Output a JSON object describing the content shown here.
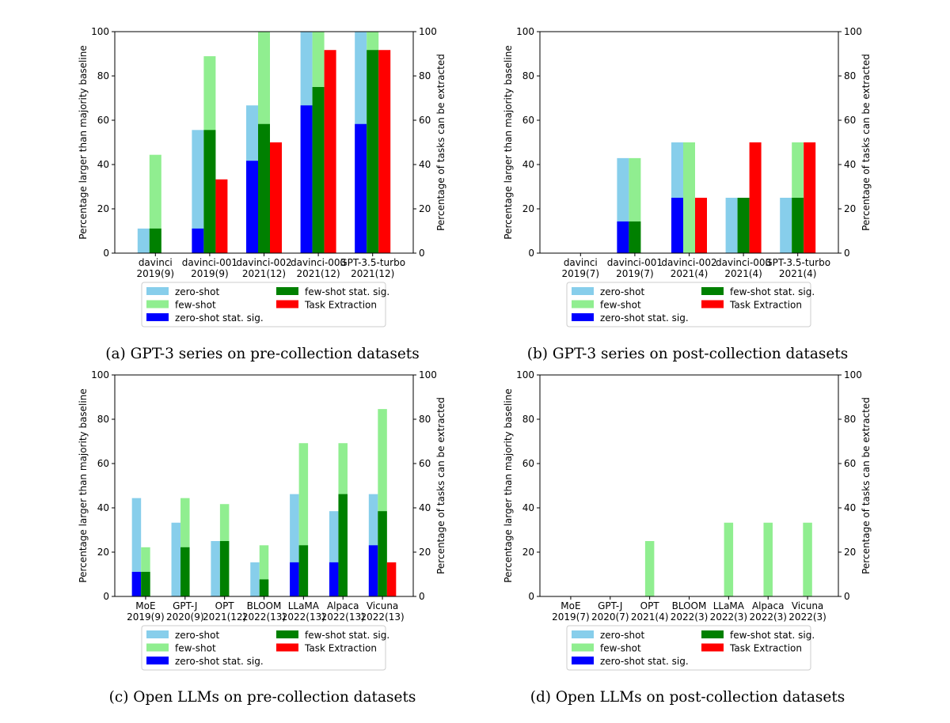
{
  "colors": {
    "zero_shot": "#87ceeb",
    "few_shot": "#90ee90",
    "zero_shot_sig": "#0000ff",
    "few_shot_sig": "#008000",
    "task_extraction": "#ff0000"
  },
  "chart_data": [
    {
      "id": "a",
      "type": "bar",
      "caption": "(a) GPT-3 series on pre-collection datasets",
      "ylabel_left": "Percentage larger than majority baseline",
      "ylabel_right": "Percentage of tasks can be extracted",
      "ylim": [
        0,
        100
      ],
      "yticks": [
        0,
        20,
        40,
        60,
        80,
        100
      ],
      "categories": [
        {
          "name": "davinci",
          "sub": "2019(9)"
        },
        {
          "name": "davinci-001",
          "sub": "2019(9)"
        },
        {
          "name": "davinci-002",
          "sub": "2021(12)"
        },
        {
          "name": "davinci-003",
          "sub": "2021(12)"
        },
        {
          "name": "GPT-3.5-turbo",
          "sub": "2021(12)"
        }
      ],
      "series": {
        "zero_shot": [
          11.1,
          55.6,
          66.7,
          100,
          100
        ],
        "zero_shot_sig": [
          0,
          11.1,
          41.7,
          66.7,
          58.3
        ],
        "few_shot": [
          44.4,
          88.9,
          100,
          100,
          100
        ],
        "few_shot_sig": [
          11.1,
          55.6,
          58.3,
          75,
          91.7
        ],
        "task_extraction": [
          0,
          33.3,
          50,
          91.7,
          91.7
        ]
      },
      "legend": {
        "zero_shot": "zero-shot",
        "few_shot": "few-shot",
        "zero_shot_sig": "zero-shot stat. sig.",
        "few_shot_sig": "few-shot stat. sig.",
        "task_extraction": "Task Extraction"
      }
    },
    {
      "id": "b",
      "type": "bar",
      "caption": "(b) GPT-3 series on post-collection datasets",
      "ylabel_left": "Percentage larger than majority baseline",
      "ylabel_right": "Percentage of tasks can be extracted",
      "ylim": [
        0,
        100
      ],
      "yticks": [
        0,
        20,
        40,
        60,
        80,
        100
      ],
      "categories": [
        {
          "name": "davinci",
          "sub": "2019(7)"
        },
        {
          "name": "davinci-001",
          "sub": "2019(7)"
        },
        {
          "name": "davinci-002",
          "sub": "2021(4)"
        },
        {
          "name": "davinci-003",
          "sub": "2021(4)"
        },
        {
          "name": "GPT-3.5-turbo",
          "sub": "2021(4)"
        }
      ],
      "series": {
        "zero_shot": [
          0,
          42.9,
          50,
          25,
          25
        ],
        "zero_shot_sig": [
          0,
          14.3,
          25,
          0,
          0
        ],
        "few_shot": [
          0,
          42.9,
          50,
          25,
          50
        ],
        "few_shot_sig": [
          0,
          14.3,
          0,
          25,
          25
        ],
        "task_extraction": [
          0,
          0,
          25,
          50,
          50
        ]
      },
      "legend": {
        "zero_shot": "zero-shot",
        "few_shot": "few-shot",
        "zero_shot_sig": "zero-shot stat. sig.",
        "few_shot_sig": "few-shot stat. sig.",
        "task_extraction": "Task Extraction"
      }
    },
    {
      "id": "c",
      "type": "bar",
      "caption": "(c) Open LLMs on pre-collection datasets",
      "ylabel_left": "Percentage larger than majority baseline",
      "ylabel_right": "Percentage of tasks can be extracted",
      "ylim": [
        0,
        100
      ],
      "yticks": [
        0,
        20,
        40,
        60,
        80,
        100
      ],
      "categories": [
        {
          "name": "MoE",
          "sub": "2019(9)"
        },
        {
          "name": "GPT-J",
          "sub": "2020(9)"
        },
        {
          "name": "OPT",
          "sub": "2021(12)"
        },
        {
          "name": "BLOOM",
          "sub": "2022(13)"
        },
        {
          "name": "LLaMA",
          "sub": "2022(13)"
        },
        {
          "name": "Alpaca",
          "sub": "2022(13)"
        },
        {
          "name": "Vicuna",
          "sub": "2022(13)"
        }
      ],
      "series": {
        "zero_shot": [
          44.4,
          33.3,
          25,
          15.4,
          46.2,
          38.5,
          46.2
        ],
        "zero_shot_sig": [
          11.1,
          0,
          0,
          0,
          15.4,
          15.4,
          23.1
        ],
        "few_shot": [
          22.2,
          44.4,
          41.7,
          23.1,
          69.2,
          69.2,
          84.6
        ],
        "few_shot_sig": [
          11.1,
          22.2,
          25,
          7.7,
          23.1,
          46.2,
          38.5
        ],
        "task_extraction": [
          0,
          0,
          0,
          0,
          0,
          0,
          15.4
        ]
      },
      "legend": {
        "zero_shot": "zero-shot",
        "few_shot": "few-shot",
        "zero_shot_sig": "zero-shot stat. sig.",
        "few_shot_sig": "few-shot stat. sig.",
        "task_extraction": "Task Extraction"
      }
    },
    {
      "id": "d",
      "type": "bar",
      "caption": "(d) Open LLMs on post-collection datasets",
      "ylabel_left": "Percentage larger than majority baseline",
      "ylabel_right": "Percentage of tasks can be extracted",
      "ylim": [
        0,
        100
      ],
      "yticks": [
        0,
        20,
        40,
        60,
        80,
        100
      ],
      "categories": [
        {
          "name": "MoE",
          "sub": "2019(7)"
        },
        {
          "name": "GPT-J",
          "sub": "2020(7)"
        },
        {
          "name": "OPT",
          "sub": "2021(4)"
        },
        {
          "name": "BLOOM",
          "sub": "2022(3)"
        },
        {
          "name": "LLaMA",
          "sub": "2022(3)"
        },
        {
          "name": "Alpaca",
          "sub": "2022(3)"
        },
        {
          "name": "Vicuna",
          "sub": "2022(3)"
        }
      ],
      "series": {
        "zero_shot": [
          0,
          0,
          0,
          0,
          0,
          0,
          0
        ],
        "zero_shot_sig": [
          0,
          0,
          0,
          0,
          0,
          0,
          0
        ],
        "few_shot": [
          0,
          0,
          25,
          0,
          33.3,
          33.3,
          33.3
        ],
        "few_shot_sig": [
          0,
          0,
          0,
          0,
          0,
          0,
          0
        ],
        "task_extraction": [
          0,
          0,
          0,
          0,
          0,
          0,
          0
        ]
      },
      "legend": {
        "zero_shot": "zero-shot",
        "few_shot": "few-shot",
        "zero_shot_sig": "zero-shot stat. sig.",
        "few_shot_sig": "few-shot stat. sig.",
        "task_extraction": "Task Extraction"
      }
    }
  ]
}
